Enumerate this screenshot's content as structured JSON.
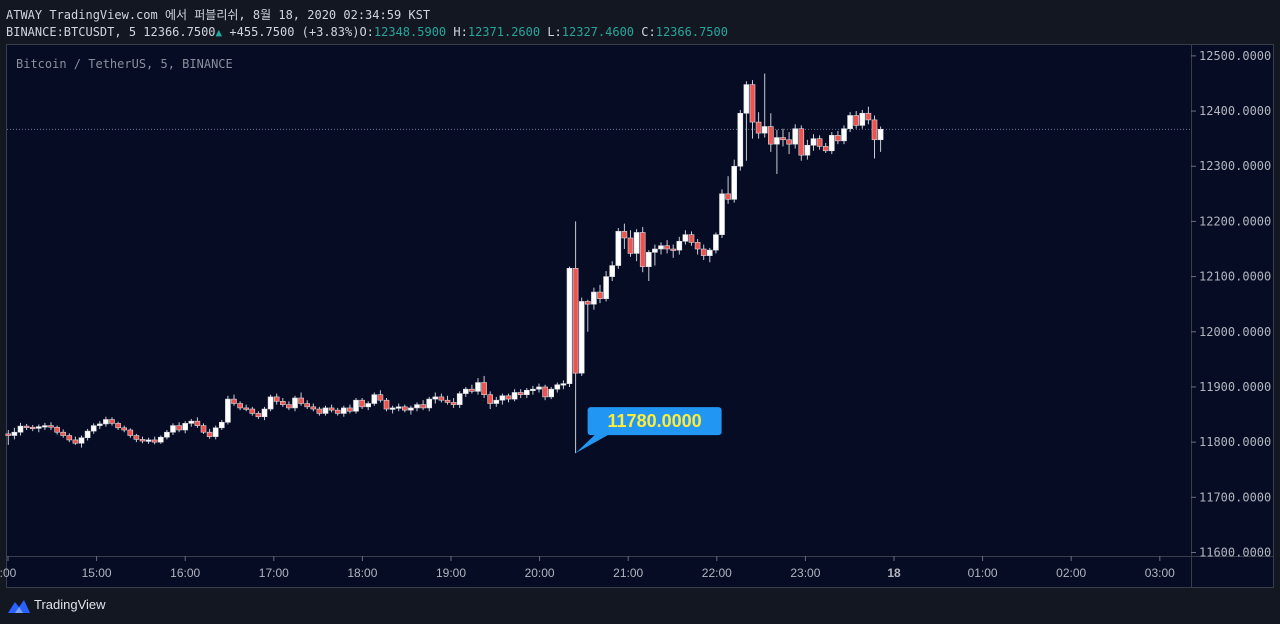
{
  "header": {
    "publish_line": "ATWAY TradingView.com 에서 퍼블리쉬, 8월 18, 2020 02:34:59 KST",
    "symbol": "BINANCE:BTCUSDT, 5",
    "last": "12366.7500",
    "change": "+455.7500",
    "change_pct": "(+3.83%)",
    "o_label": "O:",
    "o_value": "12348.5900",
    "h_label": "H:",
    "h_value": "12371.2600",
    "l_label": "L:",
    "l_value": "12327.4600",
    "c_label": "C:",
    "c_value": "12366.7500"
  },
  "chart_title": "Bitcoin / TetherUS, 5, BINANCE",
  "callout": "11780.0000",
  "footer": {
    "brand": "TradingView",
    "icon": "tradingview-logo-icon"
  },
  "colors": {
    "background": "#050c24",
    "up": "#ffffff",
    "down": "#ef5350",
    "teal": "#26a69a",
    "callout_bg": "#2196f3",
    "callout_text": "#ffeb3b"
  },
  "chart_data": {
    "type": "candlestick",
    "interval": "5m",
    "ylim": [
      11560,
      12535
    ],
    "y_ticks": [
      "11600.0000",
      "11700.0000",
      "11800.0000",
      "11900.0000",
      "12000.0000",
      "12100.0000",
      "12200.0000",
      "12300.0000",
      "12400.0000",
      "12500.0000"
    ],
    "x_ticks": [
      ":00",
      "15:00",
      "16:00",
      "17:00",
      "18:00",
      "19:00",
      "20:00",
      "21:00",
      "22:00",
      "23:00",
      "18",
      "01:00",
      "02:00",
      "03:00"
    ],
    "bold_x_tick": "18",
    "last_price": 12366.75,
    "callout_price": 11780,
    "candles": [
      [
        11815,
        11822,
        11795,
        11812
      ],
      [
        11812,
        11826,
        11805,
        11818
      ],
      [
        11818,
        11835,
        11812,
        11829
      ],
      [
        11829,
        11833,
        11822,
        11827
      ],
      [
        11827,
        11831,
        11820,
        11825
      ],
      [
        11825,
        11832,
        11818,
        11828
      ],
      [
        11828,
        11835,
        11822,
        11830
      ],
      [
        11830,
        11836,
        11822,
        11827
      ],
      [
        11827,
        11830,
        11814,
        11818
      ],
      [
        11818,
        11823,
        11808,
        11812
      ],
      [
        11812,
        11816,
        11800,
        11804
      ],
      [
        11804,
        11810,
        11795,
        11798
      ],
      [
        11798,
        11812,
        11790,
        11808
      ],
      [
        11808,
        11824,
        11803,
        11820
      ],
      [
        11820,
        11834,
        11815,
        11830
      ],
      [
        11830,
        11838,
        11824,
        11833
      ],
      [
        11833,
        11846,
        11828,
        11841
      ],
      [
        11841,
        11845,
        11830,
        11834
      ],
      [
        11834,
        11837,
        11822,
        11826
      ],
      [
        11826,
        11830,
        11818,
        11822
      ],
      [
        11822,
        11825,
        11808,
        11812
      ],
      [
        11812,
        11815,
        11800,
        11805
      ],
      [
        11805,
        11810,
        11798,
        11802
      ],
      [
        11802,
        11808,
        11797,
        11804
      ],
      [
        11804,
        11810,
        11796,
        11800
      ],
      [
        11800,
        11812,
        11797,
        11809
      ],
      [
        11809,
        11822,
        11805,
        11818
      ],
      [
        11818,
        11834,
        11813,
        11830
      ],
      [
        11830,
        11836,
        11818,
        11822
      ],
      [
        11822,
        11838,
        11816,
        11834
      ],
      [
        11834,
        11842,
        11828,
        11838
      ],
      [
        11838,
        11845,
        11826,
        11830
      ],
      [
        11830,
        11834,
        11815,
        11818
      ],
      [
        11818,
        11824,
        11806,
        11810
      ],
      [
        11810,
        11830,
        11805,
        11826
      ],
      [
        11826,
        11840,
        11822,
        11836
      ],
      [
        11836,
        11884,
        11832,
        11878
      ],
      [
        11878,
        11886,
        11866,
        11870
      ],
      [
        11870,
        11874,
        11858,
        11862
      ],
      [
        11862,
        11868,
        11856,
        11860
      ],
      [
        11860,
        11864,
        11848,
        11852
      ],
      [
        11852,
        11856,
        11842,
        11846
      ],
      [
        11846,
        11864,
        11840,
        11860
      ],
      [
        11860,
        11886,
        11856,
        11882
      ],
      [
        11882,
        11888,
        11868,
        11874
      ],
      [
        11874,
        11880,
        11864,
        11868
      ],
      [
        11868,
        11874,
        11858,
        11862
      ],
      [
        11862,
        11884,
        11856,
        11880
      ],
      [
        11880,
        11890,
        11866,
        11870
      ],
      [
        11870,
        11876,
        11860,
        11864
      ],
      [
        11864,
        11870,
        11856,
        11860
      ],
      [
        11860,
        11864,
        11848,
        11852
      ],
      [
        11852,
        11866,
        11848,
        11862
      ],
      [
        11862,
        11868,
        11854,
        11858
      ],
      [
        11858,
        11862,
        11848,
        11852
      ],
      [
        11852,
        11866,
        11846,
        11862
      ],
      [
        11862,
        11868,
        11852,
        11856
      ],
      [
        11856,
        11880,
        11852,
        11876
      ],
      [
        11876,
        11880,
        11860,
        11864
      ],
      [
        11864,
        11874,
        11858,
        11870
      ],
      [
        11870,
        11890,
        11866,
        11886
      ],
      [
        11886,
        11894,
        11872,
        11876
      ],
      [
        11876,
        11880,
        11856,
        11860
      ],
      [
        11860,
        11866,
        11852,
        11862
      ],
      [
        11862,
        11870,
        11856,
        11864
      ],
      [
        11864,
        11868,
        11854,
        11858
      ],
      [
        11858,
        11866,
        11850,
        11862
      ],
      [
        11862,
        11872,
        11856,
        11868
      ],
      [
        11868,
        11876,
        11858,
        11862
      ],
      [
        11862,
        11882,
        11856,
        11878
      ],
      [
        11878,
        11890,
        11870,
        11882
      ],
      [
        11882,
        11888,
        11872,
        11876
      ],
      [
        11876,
        11884,
        11868,
        11872
      ],
      [
        11872,
        11880,
        11862,
        11868
      ],
      [
        11868,
        11892,
        11862,
        11888
      ],
      [
        11888,
        11900,
        11882,
        11896
      ],
      [
        11896,
        11904,
        11888,
        11892
      ],
      [
        11892,
        11916,
        11886,
        11908
      ],
      [
        11908,
        11920,
        11880,
        11886
      ],
      [
        11886,
        11892,
        11860,
        11870
      ],
      [
        11870,
        11882,
        11864,
        11876
      ],
      [
        11876,
        11888,
        11868,
        11884
      ],
      [
        11884,
        11888,
        11872,
        11878
      ],
      [
        11878,
        11896,
        11874,
        11890
      ],
      [
        11890,
        11896,
        11880,
        11886
      ],
      [
        11886,
        11898,
        11880,
        11894
      ],
      [
        11894,
        11902,
        11886,
        11896
      ],
      [
        11896,
        11906,
        11890,
        11900
      ],
      [
        11900,
        11904,
        11876,
        11882
      ],
      [
        11882,
        11900,
        11878,
        11896
      ],
      [
        11896,
        11908,
        11890,
        11904
      ],
      [
        11904,
        11912,
        11896,
        11906
      ],
      [
        11906,
        12118,
        11900,
        12115
      ],
      [
        12115,
        12200,
        11780,
        11925
      ],
      [
        11925,
        12062,
        11920,
        12055
      ],
      [
        12055,
        12058,
        12000,
        12050
      ],
      [
        12050,
        12080,
        12040,
        12072
      ],
      [
        12072,
        12085,
        12052,
        12060
      ],
      [
        12060,
        12110,
        12055,
        12100
      ],
      [
        12100,
        12128,
        12092,
        12120
      ],
      [
        12120,
        12188,
        12114,
        12182
      ],
      [
        12182,
        12196,
        12150,
        12170
      ],
      [
        12170,
        12184,
        12136,
        12142
      ],
      [
        12142,
        12186,
        12128,
        12180
      ],
      [
        12180,
        12190,
        12108,
        12118
      ],
      [
        12118,
        12148,
        12092,
        12144
      ],
      [
        12144,
        12158,
        12120,
        12150
      ],
      [
        12150,
        12162,
        12140,
        12156
      ],
      [
        12156,
        12166,
        12142,
        12150
      ],
      [
        12150,
        12158,
        12134,
        12148
      ],
      [
        12148,
        12172,
        12140,
        12164
      ],
      [
        12164,
        12184,
        12158,
        12176
      ],
      [
        12176,
        12182,
        12156,
        12162
      ],
      [
        12162,
        12168,
        12140,
        12150
      ],
      [
        12150,
        12158,
        12130,
        12138
      ],
      [
        12138,
        12152,
        12126,
        12148
      ],
      [
        12148,
        12180,
        12142,
        12176
      ],
      [
        12176,
        12258,
        12170,
        12250
      ],
      [
        12250,
        12282,
        12232,
        12240
      ],
      [
        12240,
        12312,
        12234,
        12300
      ],
      [
        12300,
        12402,
        12292,
        12396
      ],
      [
        12396,
        12454,
        12310,
        12448
      ],
      [
        12448,
        12456,
        12350,
        12380
      ],
      [
        12380,
        12398,
        12350,
        12360
      ],
      [
        12360,
        12468,
        12352,
        12372
      ],
      [
        12372,
        12396,
        12326,
        12340
      ],
      [
        12340,
        12366,
        12286,
        12352
      ],
      [
        12352,
        12368,
        12336,
        12348
      ],
      [
        12348,
        12362,
        12322,
        12340
      ],
      [
        12340,
        12376,
        12332,
        12368
      ],
      [
        12368,
        12374,
        12310,
        12320
      ],
      [
        12320,
        12348,
        12312,
        12338
      ],
      [
        12338,
        12358,
        12328,
        12350
      ],
      [
        12350,
        12356,
        12330,
        12336
      ],
      [
        12336,
        12342,
        12324,
        12328
      ],
      [
        12328,
        12362,
        12322,
        12356
      ],
      [
        12356,
        12364,
        12340,
        12346
      ],
      [
        12346,
        12374,
        12340,
        12368
      ],
      [
        12368,
        12398,
        12362,
        12392
      ],
      [
        12392,
        12400,
        12368,
        12374
      ],
      [
        12374,
        12402,
        12368,
        12396
      ],
      [
        12396,
        12408,
        12376,
        12384
      ],
      [
        12384,
        12392,
        12314,
        12348
      ],
      [
        12348,
        12372,
        12326,
        12367
      ]
    ]
  }
}
